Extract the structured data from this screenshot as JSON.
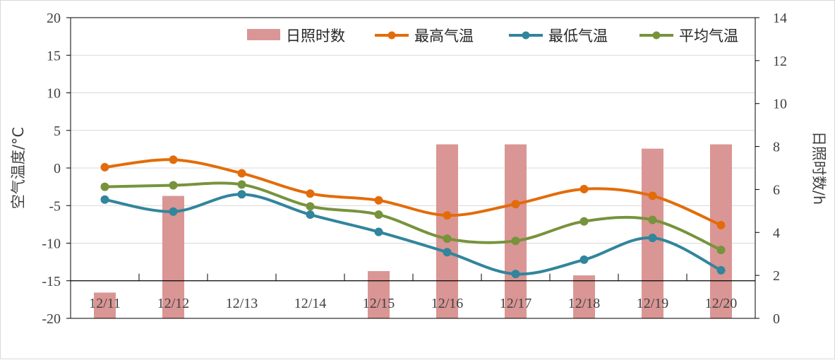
{
  "chart_data": {
    "type": "bar+line",
    "categories": [
      "12/11",
      "12/12",
      "12/13",
      "12/14",
      "12/15",
      "12/16",
      "12/17",
      "12/18",
      "12/19",
      "12/20"
    ],
    "bar_series": {
      "name": "日照时数",
      "axis": "right",
      "color": "#d99694",
      "values": [
        1.2,
        5.7,
        null,
        null,
        2.2,
        8.1,
        8.1,
        2.0,
        7.9,
        8.1
      ]
    },
    "series": [
      {
        "name": "最高气温",
        "axis": "left",
        "color": "#e36c0a",
        "values": [
          0.1,
          1.1,
          -0.7,
          -3.4,
          -4.3,
          -6.3,
          -4.8,
          -2.8,
          -3.7,
          -7.6
        ]
      },
      {
        "name": "最低气温",
        "axis": "left",
        "color": "#31859c",
        "values": [
          -4.2,
          -5.8,
          -3.5,
          -6.2,
          -8.5,
          -11.2,
          -14.1,
          -12.2,
          -9.3,
          -13.6
        ]
      },
      {
        "name": "平均气温",
        "axis": "left",
        "color": "#77933c",
        "values": [
          -2.5,
          -2.3,
          -2.2,
          -5.1,
          -6.2,
          -9.4,
          -9.7,
          -7.1,
          -6.9,
          -10.9
        ]
      }
    ],
    "ylabel_left": "空气温度/°C",
    "ylabel_right": "日照时数/h",
    "ylim_left": [
      -20,
      20
    ],
    "ylim_right": [
      0,
      14
    ],
    "yticks_left": [
      "20",
      "15",
      "10",
      "5",
      "0",
      "-5",
      "-10",
      "-15",
      "-20"
    ],
    "yticks_right": [
      "14",
      "12",
      "10",
      "8",
      "6",
      "4",
      "2",
      "0"
    ],
    "category_axis_at": -15,
    "grid": "horizontal",
    "legend_position": "top-right"
  }
}
